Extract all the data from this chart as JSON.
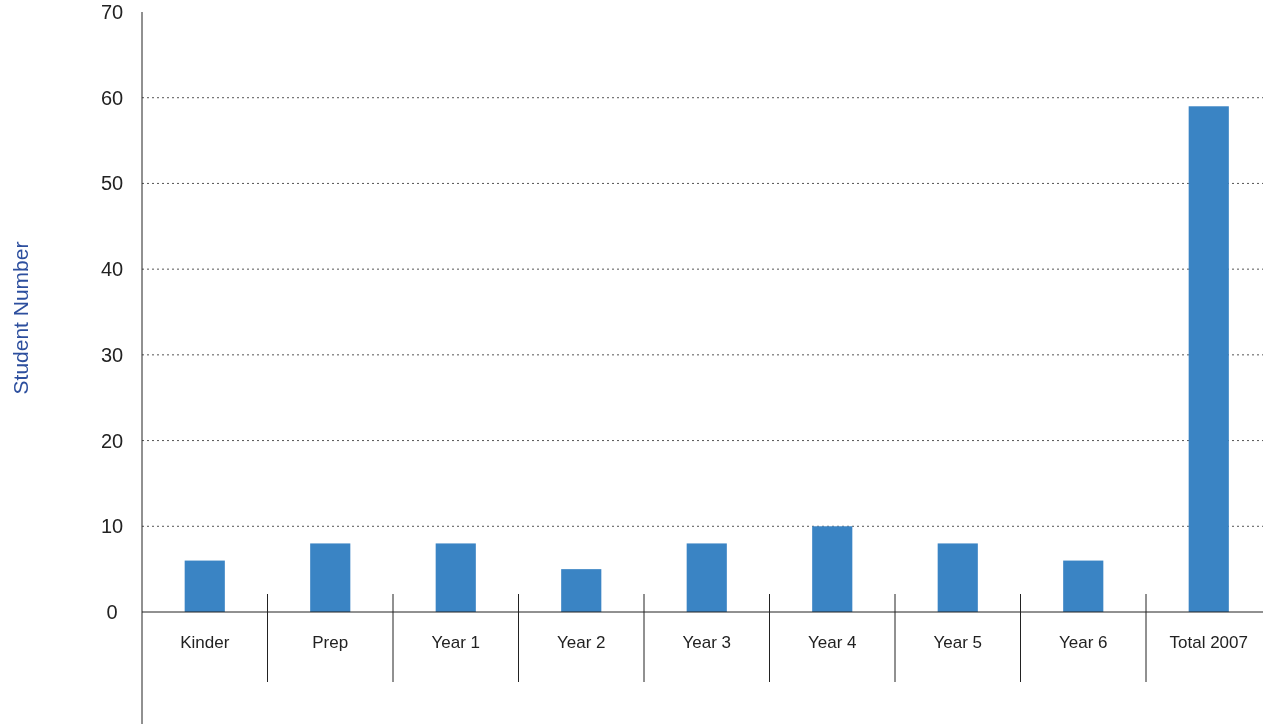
{
  "chart_data": {
    "type": "bar",
    "ylabel": "Student Number",
    "categories": [
      "Kinder",
      "Prep",
      "Year 1",
      "Year 2",
      "Year 3",
      "Year 4",
      "Year 5",
      "Year 6",
      "Total 2007"
    ],
    "values": [
      6,
      8,
      8,
      5,
      8,
      10,
      8,
      6,
      59
    ],
    "color": "#3a84c4",
    "ylim": [
      0,
      70
    ],
    "yticks": [
      0,
      10,
      20,
      30,
      40,
      50,
      60,
      70
    ],
    "grid": "y"
  }
}
